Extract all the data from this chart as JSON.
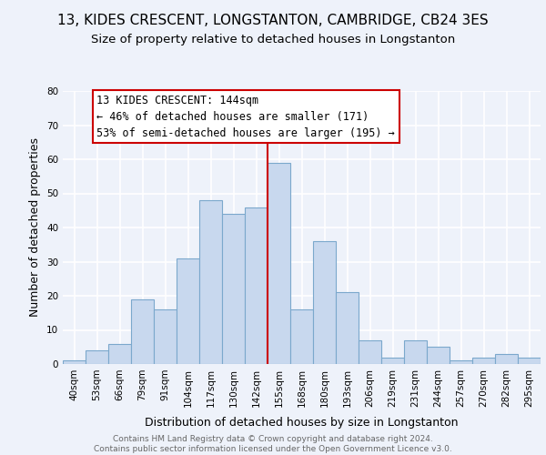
{
  "title": "13, KIDES CRESCENT, LONGSTANTON, CAMBRIDGE, CB24 3ES",
  "subtitle": "Size of property relative to detached houses in Longstanton",
  "xlabel": "Distribution of detached houses by size in Longstanton",
  "ylabel": "Number of detached properties",
  "bin_labels": [
    "40sqm",
    "53sqm",
    "66sqm",
    "79sqm",
    "91sqm",
    "104sqm",
    "117sqm",
    "130sqm",
    "142sqm",
    "155sqm",
    "168sqm",
    "180sqm",
    "193sqm",
    "206sqm",
    "219sqm",
    "231sqm",
    "244sqm",
    "257sqm",
    "270sqm",
    "282sqm",
    "295sqm"
  ],
  "bar_heights": [
    1,
    4,
    6,
    19,
    16,
    31,
    48,
    44,
    46,
    59,
    16,
    36,
    21,
    7,
    2,
    7,
    5,
    1,
    2,
    3,
    2
  ],
  "bar_color": "#c8d8ee",
  "bar_edge_color": "#7ba8cc",
  "vline_color": "#cc0000",
  "annotation_box_text": "13 KIDES CRESCENT: 144sqm\n← 46% of detached houses are smaller (171)\n53% of semi-detached houses are larger (195) →",
  "annotation_box_color": "#cc0000",
  "ylim": [
    0,
    80
  ],
  "yticks": [
    0,
    10,
    20,
    30,
    40,
    50,
    60,
    70,
    80
  ],
  "footer": "Contains HM Land Registry data © Crown copyright and database right 2024.\nContains public sector information licensed under the Open Government Licence v3.0.",
  "background_color": "#eef2fa",
  "grid_color": "#ffffff",
  "title_fontsize": 11,
  "subtitle_fontsize": 9.5,
  "axis_label_fontsize": 9,
  "tick_fontsize": 7.5,
  "annotation_fontsize": 8.5,
  "footer_fontsize": 6.5
}
